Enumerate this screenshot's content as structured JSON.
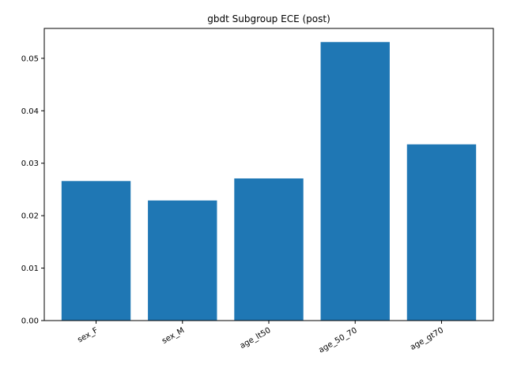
{
  "chart_data": {
    "type": "bar",
    "title": "gbdt Subgroup ECE (post)",
    "xlabel": "",
    "ylabel": "",
    "categories": [
      "sex_F",
      "sex_M",
      "age_lt50",
      "age_50_70",
      "age_gt70"
    ],
    "values": [
      0.0266,
      0.0229,
      0.0271,
      0.0531,
      0.0336
    ],
    "ylim": [
      0,
      0.0557
    ],
    "yticks": [
      0.0,
      0.01,
      0.02,
      0.03,
      0.04,
      0.05
    ],
    "ytick_labels": [
      "0.00",
      "0.01",
      "0.02",
      "0.03",
      "0.04",
      "0.05"
    ],
    "bar_color": "#1f77b4",
    "grid": false,
    "legend": "none"
  }
}
